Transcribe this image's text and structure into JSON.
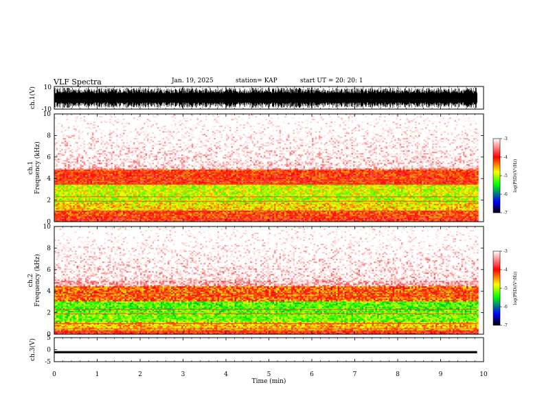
{
  "header": {
    "title": "VLF Spectra",
    "date": "Jan. 19, 2025",
    "station": "station= KAP",
    "start": "start UT =  20: 20: 1"
  },
  "colors": {
    "waveform": "#000000",
    "colorscale": [
      "#ffffff",
      "#ff0000",
      "#ffff00",
      "#00ff00",
      "#0000ff",
      "#000000"
    ]
  },
  "chart_data": [
    {
      "type": "line",
      "name": "ch1-waveform",
      "ylabel": "ch.1(V)",
      "ylim": [
        -10,
        10
      ],
      "yticks": [
        "10",
        "-10"
      ],
      "xlim": [
        0,
        10
      ],
      "description_level": "dense noise spanning roughly -8 to +8 V"
    },
    {
      "type": "heatmap",
      "name": "ch1-spectrogram",
      "ylabel": "ch.1\nFrequency (kHz)",
      "ylim": [
        0,
        10
      ],
      "yticks": [
        "0",
        "2",
        "4",
        "6",
        "8",
        "10"
      ],
      "xlim": [
        0,
        9.85
      ],
      "colorbar": {
        "label": "log(PSD)(V²/Hz)",
        "ticks": [
          "-3",
          "-4",
          "-5",
          "-6",
          "-7"
        ],
        "range": [
          -7,
          -3
        ]
      },
      "bands": [
        {
          "from_khz": 0.0,
          "to_khz": 0.4,
          "level": -4.0
        },
        {
          "from_khz": 0.4,
          "to_khz": 1.0,
          "level": -4.2
        },
        {
          "from_khz": 1.0,
          "to_khz": 1.8,
          "level": -4.7
        },
        {
          "from_khz": 1.8,
          "to_khz": 2.4,
          "level": -5.0
        },
        {
          "from_khz": 2.4,
          "to_khz": 3.4,
          "level": -4.9
        },
        {
          "from_khz": 3.4,
          "to_khz": 4.8,
          "level": -4.1
        },
        {
          "from_khz": 4.8,
          "to_khz": 10.0,
          "level": -3.3
        }
      ]
    },
    {
      "type": "heatmap",
      "name": "ch2-spectrogram",
      "ylabel": "ch.2\nFrequency (kHz)",
      "ylim": [
        0,
        10
      ],
      "yticks": [
        "0",
        "2",
        "4",
        "6",
        "8",
        "10"
      ],
      "xlim": [
        0,
        9.85
      ],
      "colorbar": {
        "label": "log(PSD)(V²/Hz)",
        "ticks": [
          "-3",
          "-4",
          "-5",
          "-6",
          "-7"
        ],
        "range": [
          -7,
          -3
        ]
      },
      "bands": [
        {
          "from_khz": 0.0,
          "to_khz": 0.4,
          "level": -4.0
        },
        {
          "from_khz": 0.4,
          "to_khz": 1.2,
          "level": -4.6
        },
        {
          "from_khz": 1.2,
          "to_khz": 2.0,
          "level": -5.2
        },
        {
          "from_khz": 2.0,
          "to_khz": 3.0,
          "level": -5.3
        },
        {
          "from_khz": 3.0,
          "to_khz": 4.5,
          "level": -4.3
        },
        {
          "from_khz": 4.5,
          "to_khz": 10.0,
          "level": -3.3
        }
      ]
    },
    {
      "type": "line",
      "name": "ch3-waveform",
      "ylabel": "ch.3(V)",
      "ylim": [
        -5,
        5
      ],
      "yticks": [
        "5",
        "0",
        "-5"
      ],
      "xlim": [
        0,
        10
      ],
      "xlabel": "Time (min)",
      "xticks": [
        "0",
        "1",
        "2",
        "3",
        "4",
        "5",
        "6",
        "7",
        "8",
        "9",
        "10"
      ],
      "description_level": "constant near -1 V with small ripple"
    }
  ]
}
